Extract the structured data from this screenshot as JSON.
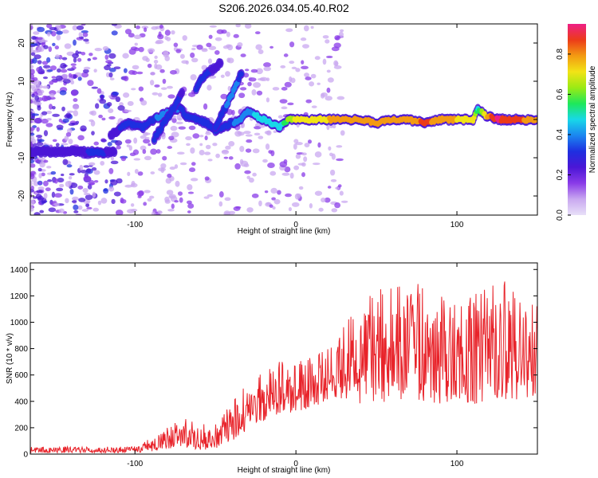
{
  "figure_title": "S206.2026.034.05.40.R02",
  "colors": {
    "series": "#e8232a",
    "colormap": [
      "#e8e0f8",
      "#c9a8f0",
      "#8a3be8",
      "#4b16d6",
      "#1e2fe0",
      "#1b86f0",
      "#18d8e8",
      "#1ee85a",
      "#9bea14",
      "#f2e316",
      "#f39a12",
      "#ec3b19",
      "#ee1f86"
    ]
  },
  "chart_data": [
    {
      "type": "heatmap",
      "title": "",
      "xlabel": "Height of straight line (km)",
      "ylabel": "Frequency (Hz)",
      "xlim": [
        -165,
        150
      ],
      "ylim": [
        -25,
        25
      ],
      "xticks": [
        "-100",
        "0",
        "100"
      ],
      "xtick_values": [
        -100,
        0,
        100
      ],
      "yticks": [
        "-20",
        "-10",
        "0",
        "10",
        "20"
      ],
      "ytick_values": [
        -20,
        -10,
        0,
        10,
        20
      ],
      "colorbar": {
        "label": "Normalized spectral amplitude",
        "ticks": [
          "0.0",
          "0.2",
          "0.4",
          "0.6",
          "0.8"
        ],
        "tick_values": [
          0.0,
          0.2,
          0.4,
          0.6,
          0.8
        ],
        "range": [
          0,
          0.95
        ]
      },
      "ridges": [
        {
          "name": "",
          "x": [
            -165,
            -140,
            -120,
            -112
          ],
          "y": [
            -8.5,
            -8.3,
            -8.6,
            -8.5
          ],
          "amplitude": [
            0.25,
            0.25,
            0.3,
            0.22
          ]
        },
        {
          "name": "",
          "x": [
            -115,
            -105,
            -95,
            -88,
            -80,
            -72,
            -68,
            -62,
            -55,
            -50,
            -45,
            -40,
            -35,
            -30,
            -25,
            -20,
            -15,
            -10,
            -5,
            0,
            10,
            20,
            30,
            40,
            50,
            60,
            70,
            80,
            90,
            100,
            110,
            113,
            118,
            125,
            135,
            145,
            150
          ],
          "y": [
            -4,
            -1,
            -2,
            0,
            2,
            3,
            1,
            0,
            -1,
            -3,
            -2,
            -1,
            0,
            2,
            1,
            0,
            -1,
            -2,
            0,
            0,
            0,
            0,
            0,
            0,
            -1,
            0,
            0,
            -1,
            0,
            0,
            0,
            3,
            1,
            0,
            0,
            0,
            0
          ],
          "amplitude": [
            0.25,
            0.3,
            0.32,
            0.35,
            0.4,
            0.35,
            0.3,
            0.32,
            0.3,
            0.3,
            0.32,
            0.35,
            0.38,
            0.4,
            0.45,
            0.5,
            0.5,
            0.45,
            0.6,
            0.7,
            0.75,
            0.75,
            0.8,
            0.8,
            0.78,
            0.8,
            0.78,
            0.85,
            0.8,
            0.75,
            0.75,
            0.5,
            0.75,
            0.92,
            0.88,
            0.8,
            0.75
          ]
        },
        {
          "name": "",
          "x": [
            -88,
            -82,
            -76,
            -70
          ],
          "y": [
            -5,
            -1,
            3,
            8
          ],
          "amplitude": [
            0.3,
            0.35,
            0.32,
            0.25
          ]
        },
        {
          "name": "",
          "x": [
            -62,
            -58,
            -52,
            -46
          ],
          "y": [
            8,
            11,
            13,
            15
          ],
          "amplitude": [
            0.3,
            0.35,
            0.25,
            0.2
          ]
        },
        {
          "name": "",
          "x": [
            -50,
            -44,
            -38,
            -33
          ],
          "y": [
            -2,
            3,
            8,
            13
          ],
          "amplitude": [
            0.3,
            0.35,
            0.4,
            0.3
          ]
        }
      ]
    },
    {
      "type": "line",
      "title": "",
      "xlabel": "Height of straight line (km)",
      "ylabel": "SNR (10 * v/v)",
      "xlim": [
        -165,
        150
      ],
      "ylim": [
        0,
        1450
      ],
      "xticks": [
        "-100",
        "0",
        "100"
      ],
      "xtick_values": [
        -100,
        0,
        100
      ],
      "yticks": [
        "0",
        "200",
        "400",
        "600",
        "800",
        "1000",
        "1200",
        "1400"
      ],
      "ytick_values": [
        0,
        200,
        400,
        600,
        800,
        1000,
        1200,
        1400
      ],
      "envelope": {
        "x": [
          -165,
          -110,
          -100,
          -90,
          -80,
          -70,
          -60,
          -50,
          -40,
          -30,
          -20,
          -10,
          0,
          10,
          20,
          30,
          40,
          50,
          60,
          70,
          80,
          90,
          100,
          110,
          120,
          130,
          140,
          150
        ],
        "low": [
          10,
          10,
          10,
          20,
          40,
          60,
          30,
          40,
          100,
          180,
          250,
          300,
          320,
          350,
          400,
          420,
          380,
          400,
          380,
          400,
          400,
          380,
          420,
          380,
          400,
          400,
          420,
          450
        ],
        "high": [
          55,
          60,
          70,
          120,
          200,
          280,
          220,
          250,
          400,
          550,
          650,
          700,
          700,
          760,
          820,
          1000,
          1150,
          1250,
          1280,
          1260,
          1320,
          1200,
          1150,
          1200,
          1280,
          1350,
          1200,
          1150
        ]
      }
    }
  ]
}
